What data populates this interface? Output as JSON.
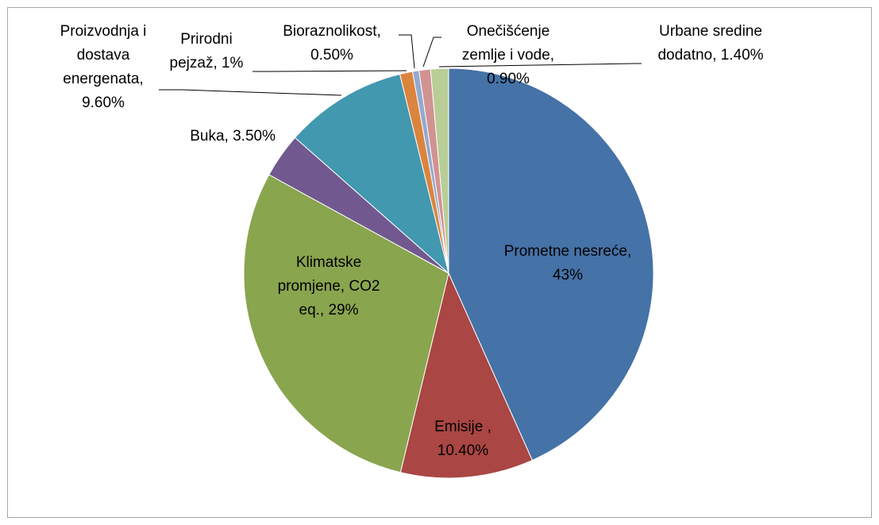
{
  "chart_data": {
    "type": "pie",
    "categories": [
      "Prometne nesreće",
      "Emisije ",
      "Klimatske promjene, CO2 eq.",
      "Buka",
      "Proizvodnja i dostava energenata",
      "Prirodni pejzaž",
      "Bioraznolikost",
      "Onečišćenje zemlje i vode",
      "Urbane sredine dodatno"
    ],
    "values": [
      43,
      10.4,
      29,
      3.5,
      9.6,
      1,
      0.5,
      0.9,
      1.4
    ],
    "value_labels": [
      "43%",
      "10.40%",
      "29%",
      "3.50%",
      "9.60%",
      "1%",
      "0.50%",
      "0.90%",
      "1.40%"
    ],
    "colors": [
      "#4572a7",
      "#aa4643",
      "#89a54e",
      "#71588f",
      "#4198af",
      "#db843d",
      "#93a9cf",
      "#d19392",
      "#b9cd96"
    ]
  }
}
